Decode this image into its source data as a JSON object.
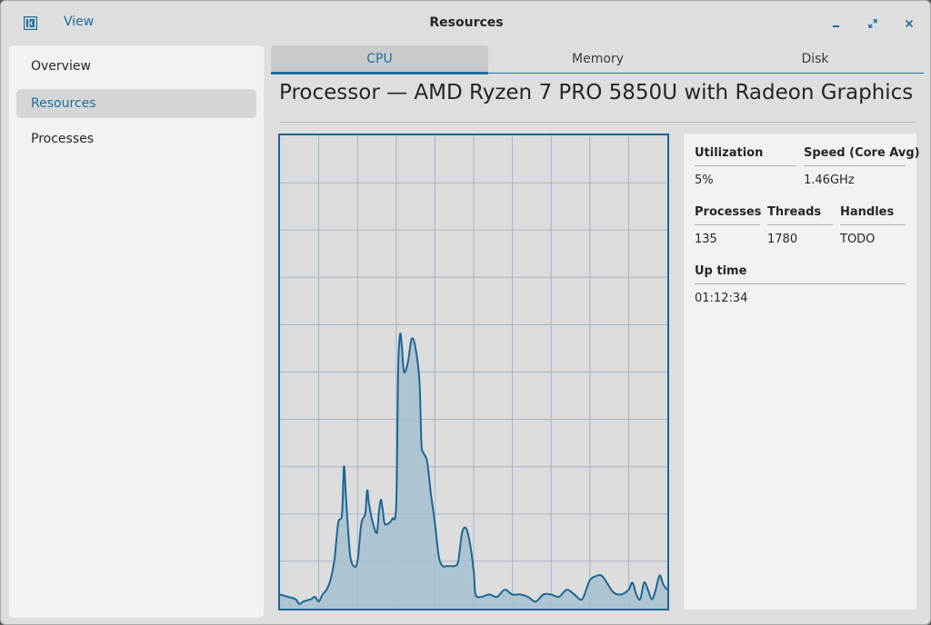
{
  "titlebar": {
    "menu_view": "View",
    "title": "Resources",
    "icons": {
      "app": "app-icon",
      "minimize": "minimize-icon",
      "maximize": "maximize-icon",
      "close": "close-icon"
    }
  },
  "sidebar": {
    "items": [
      {
        "label": "Overview"
      },
      {
        "label": "Resources"
      },
      {
        "label": "Processes"
      }
    ],
    "active": "Resources"
  },
  "tabs": [
    {
      "label": "CPU"
    },
    {
      "label": "Memory"
    },
    {
      "label": "Disk"
    }
  ],
  "active_tab": "CPU",
  "heading": "Processor  —  AMD Ryzen 7 PRO 5850U with Radeon Graphics",
  "stats": {
    "utilization": {
      "label": "Utilization",
      "value": "5%"
    },
    "speed": {
      "label": "Speed (Core Avg)",
      "value": "1.46GHz"
    },
    "processes": {
      "label": "Processes",
      "value": "135"
    },
    "threads": {
      "label": "Threads",
      "value": "1780"
    },
    "handles": {
      "label": "Handles",
      "value": "TODO"
    },
    "uptime": {
      "label": "Up time",
      "value": "01:12:34"
    }
  },
  "colors": {
    "accent": "#1d6fa0",
    "graph_line": "#1b6796",
    "graph_fill": "#a7c0cf",
    "grid": "#a3b6c6"
  },
  "chart_data": {
    "type": "area",
    "grid": true,
    "ylim": [
      0,
      100
    ],
    "xlim": [
      0,
      100
    ],
    "series": [
      {
        "points": [
          [
            0,
            3
          ],
          [
            2,
            2.5
          ],
          [
            4,
            2
          ],
          [
            5,
            1
          ],
          [
            6,
            1.5
          ],
          [
            8,
            2
          ],
          [
            9,
            2.5
          ],
          [
            10,
            1.5
          ],
          [
            11,
            3
          ],
          [
            12,
            4
          ],
          [
            13,
            6
          ],
          [
            14,
            10
          ],
          [
            15,
            18
          ],
          [
            16,
            20
          ],
          [
            16.5,
            30
          ],
          [
            17,
            24
          ],
          [
            18,
            12
          ],
          [
            19,
            9
          ],
          [
            20,
            10
          ],
          [
            21,
            18
          ],
          [
            22,
            20
          ],
          [
            22.5,
            25
          ],
          [
            23,
            22
          ],
          [
            24,
            18
          ],
          [
            25,
            16
          ],
          [
            25.5,
            20
          ],
          [
            26,
            23
          ],
          [
            26.5,
            21
          ],
          [
            27,
            18
          ],
          [
            28,
            18
          ],
          [
            29,
            19
          ],
          [
            30,
            22
          ],
          [
            30.5,
            50
          ],
          [
            31,
            58
          ],
          [
            31.5,
            55
          ],
          [
            32,
            50
          ],
          [
            33,
            52
          ],
          [
            34,
            57
          ],
          [
            35,
            55
          ],
          [
            36,
            48
          ],
          [
            36.5,
            35
          ],
          [
            37,
            33
          ],
          [
            38,
            31
          ],
          [
            39,
            24
          ],
          [
            40,
            18
          ],
          [
            41,
            11
          ],
          [
            42,
            9
          ],
          [
            43,
            9
          ],
          [
            44,
            9
          ],
          [
            45,
            9
          ],
          [
            46,
            10
          ],
          [
            47,
            16
          ],
          [
            48,
            17
          ],
          [
            49,
            14
          ],
          [
            50,
            8
          ],
          [
            50.5,
            3
          ],
          [
            52,
            2.5
          ],
          [
            54,
            3
          ],
          [
            56,
            2.5
          ],
          [
            58,
            4
          ],
          [
            60,
            3
          ],
          [
            62,
            3
          ],
          [
            64,
            2.5
          ],
          [
            66,
            1.5
          ],
          [
            68,
            3
          ],
          [
            70,
            3
          ],
          [
            72,
            2.5
          ],
          [
            74,
            4
          ],
          [
            76,
            3
          ],
          [
            78,
            2
          ],
          [
            80,
            6
          ],
          [
            82,
            7
          ],
          [
            83,
            7
          ],
          [
            84,
            6
          ],
          [
            86,
            3.5
          ],
          [
            88,
            3
          ],
          [
            90,
            4
          ],
          [
            91,
            5.5
          ],
          [
            92,
            3
          ],
          [
            93,
            2
          ],
          [
            94,
            5.5
          ],
          [
            95,
            4
          ],
          [
            96,
            2
          ],
          [
            97,
            4
          ],
          [
            98,
            7
          ],
          [
            99,
            5
          ],
          [
            100,
            4
          ]
        ]
      }
    ]
  }
}
